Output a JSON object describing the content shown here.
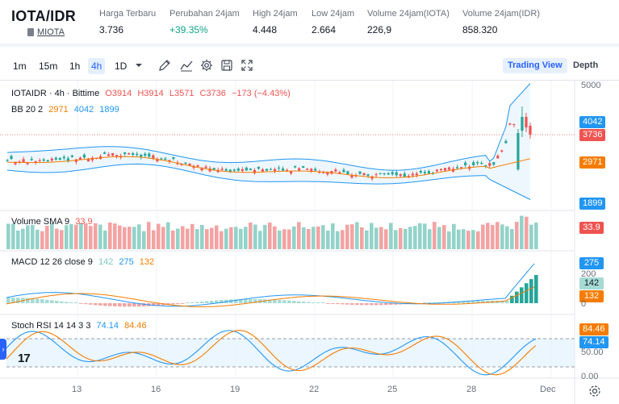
{
  "market": {
    "pair": "IOTA/IDR",
    "coin": "MIOTA",
    "stats": [
      {
        "label": "Harga Terbaru",
        "value": "3.736",
        "tone": "normal"
      },
      {
        "label": "Perubahan 24jam",
        "value": "+39.35%",
        "tone": "up"
      },
      {
        "label": "High 24jam",
        "value": "4.448",
        "tone": "normal"
      },
      {
        "label": "Low 24jam",
        "value": "2.664",
        "tone": "normal"
      },
      {
        "label": "Volume 24jam(IOTA)",
        "value": "226,9",
        "tone": "normal"
      },
      {
        "label": "Volume 24jam(IDR)",
        "value": "858.320",
        "tone": "normal"
      }
    ]
  },
  "toolbar": {
    "timeframes": [
      {
        "label": "1m",
        "active": false
      },
      {
        "label": "15m",
        "active": false
      },
      {
        "label": "1h",
        "active": false
      },
      {
        "label": "4h",
        "active": true
      },
      {
        "label": "1D",
        "active": false
      }
    ],
    "icons": [
      "chevron-down-icon",
      "drawing-pen-icon",
      "indicators-icon",
      "gear-icon",
      "save-icon",
      "fullscreen-icon"
    ],
    "trading_view_label": "Trading View",
    "depth_label": "Depth"
  },
  "legends": {
    "main": {
      "symbol": "IOTAIDR · 4h · Bittime",
      "o": "O3914",
      "h": "H3914",
      "l": "L3571",
      "c": "C3736",
      "chg": "−173 (−4.43%)"
    },
    "bb": {
      "name": "BB 20 2",
      "basis": "2971",
      "upper": "4042",
      "lower": "1899"
    },
    "volume": {
      "name": "Volume SMA 9",
      "value": "33.9"
    },
    "macd": {
      "name": "MACD 12 26 close 9",
      "hist": "142",
      "macd": "275",
      "signal": "132"
    },
    "stoch": {
      "name": "Stoch RSI 14 14 3 3",
      "k": "74.14",
      "d": "84.46"
    }
  },
  "axes": {
    "price": {
      "top": "5000",
      "upper_tag": "4042",
      "last_tag": "3736",
      "basis_tag": "2971",
      "lower_tag": "1899"
    },
    "volume": {
      "tag": "33.9"
    },
    "macd": {
      "t200": "200",
      "t0": "0",
      "macd_tag": "275",
      "hist_tag": "142",
      "signal_tag": "132"
    },
    "stoch": {
      "k_tag": "74.14",
      "d_tag": "84.46",
      "t50": "50.00",
      "t0": "0.00"
    },
    "x_labels": [
      "13",
      "16",
      "19",
      "22",
      "25",
      "28",
      "Dec"
    ]
  },
  "colors": {
    "up": "#26a69a",
    "down": "#ef5350",
    "accent": "#2962ff",
    "bb_band": "#2196f3",
    "basis": "#f57c00"
  }
}
